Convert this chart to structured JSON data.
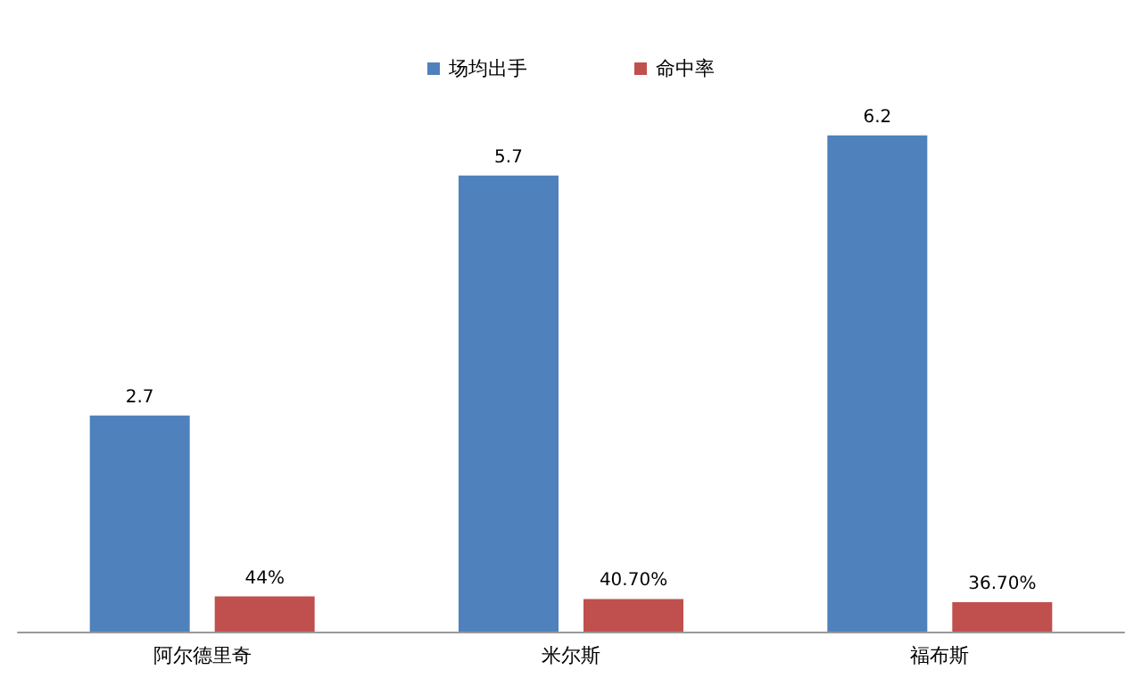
{
  "chart_data": {
    "type": "bar",
    "categories": [
      "阿尔德里奇",
      "米尔斯",
      "福布斯"
    ],
    "series": [
      {
        "name": "场均出手",
        "color": "#4f81bd",
        "values": [
          2.7,
          5.7,
          6.2
        ],
        "value_labels": [
          "2.7",
          "5.7",
          "6.2"
        ]
      },
      {
        "name": "命中率",
        "color": "#c0504d",
        "values": [
          0.44,
          0.407,
          0.367
        ],
        "value_labels": [
          "44%",
          "40.70%",
          "36.70%"
        ]
      }
    ],
    "legend": "top",
    "tick_labels": "x"
  }
}
